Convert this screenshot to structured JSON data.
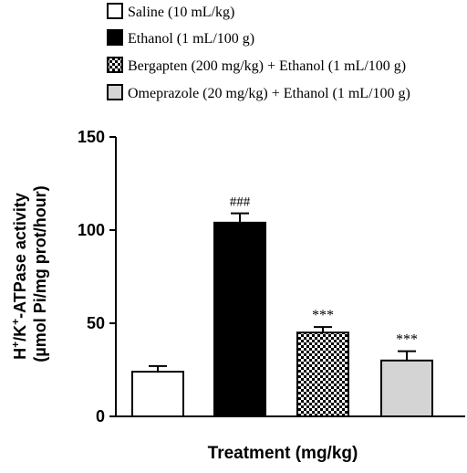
{
  "chart_data": {
    "type": "bar",
    "categories": [
      "Saline (10 mL/kg)",
      "Ethanol (1 mL/100 g)",
      "Bergapten (200 mg/kg) + Ethanol (1 mL/100 g)",
      "Omeprazole (20 mg/kg) + Ethanol (1 mL/100 g)"
    ],
    "values": [
      24,
      104,
      45,
      30
    ],
    "errors": [
      3,
      5,
      3,
      5
    ],
    "annotations": [
      "",
      "###",
      "***",
      "***"
    ],
    "fills": [
      "white",
      "black",
      "checker",
      "lightgray"
    ],
    "colors": {
      "gray_fill": "#d4d4d4",
      "stroke": "#000000"
    },
    "xlabel": "Treatment (mg/kg)",
    "ylabel_line1_prefix": "H",
    "ylabel_sup1": "+",
    "ylabel_line1_mid": "/K",
    "ylabel_sup2": "+",
    "ylabel_line1_suffix": "-ATPase activity",
    "ylabel_line2": "(µmol Pi/mg prot/hour)",
    "ylim": [
      0,
      150
    ],
    "yticks": [
      0,
      50,
      100,
      150
    ],
    "ytick_labels": [
      "0",
      "50",
      "100",
      "150"
    ],
    "legend_position": "top"
  }
}
